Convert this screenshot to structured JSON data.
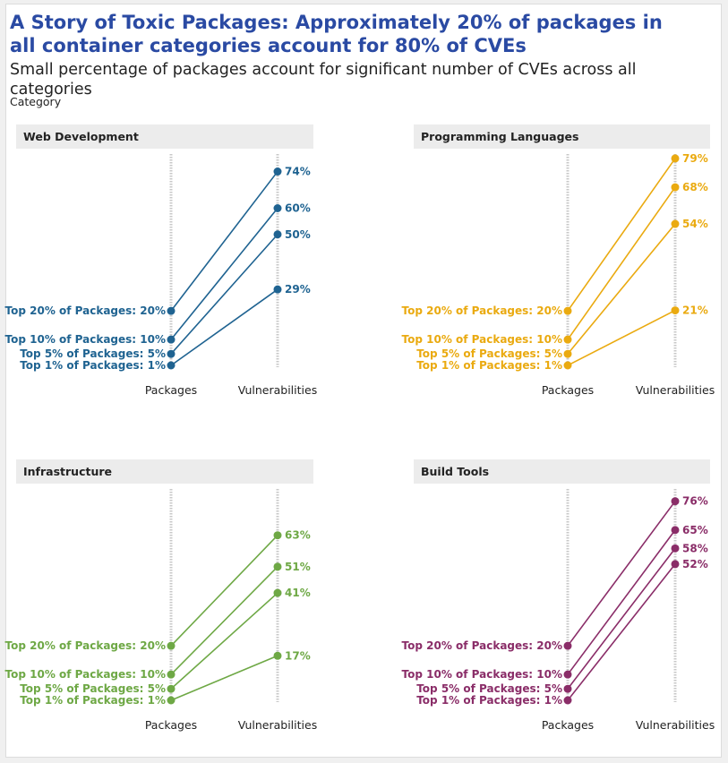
{
  "title": "A Story of Toxic Packages: Approximately 20% of packages in all container categories account for 80% of CVEs",
  "subtitle": "Small percentage of packages account for significant number of CVEs across all categories",
  "facet_label": "Category",
  "chart_data": [
    {
      "type": "slope",
      "title": "Web Development",
      "color": "#1f6391",
      "xlabels": [
        "Packages",
        "Vulnerabilities"
      ],
      "series": [
        {
          "name": "Top 20% of Packages",
          "packages": 20,
          "vulnerabilities": 74
        },
        {
          "name": "Top 10% of Packages",
          "packages": 10,
          "vulnerabilities": 60
        },
        {
          "name": "Top 5% of Packages",
          "packages": 5,
          "vulnerabilities": 50
        },
        {
          "name": "Top 1% of Packages",
          "packages": 1,
          "vulnerabilities": 29
        }
      ]
    },
    {
      "type": "slope",
      "title": "Programming Languages",
      "color": "#eaaa10",
      "xlabels": [
        "Packages",
        "Vulnerabilities"
      ],
      "series": [
        {
          "name": "Top 20% of Packages",
          "packages": 20,
          "vulnerabilities": 79
        },
        {
          "name": "Top 10% of Packages",
          "packages": 10,
          "vulnerabilities": 68
        },
        {
          "name": "Top 5% of Packages",
          "packages": 5,
          "vulnerabilities": 54
        },
        {
          "name": "Top 1% of Packages",
          "packages": 1,
          "vulnerabilities": 21
        }
      ]
    },
    {
      "type": "slope",
      "title": "Infrastructure",
      "color": "#6ea845",
      "xlabels": [
        "Packages",
        "Vulnerabilities"
      ],
      "series": [
        {
          "name": "Top 20% of Packages",
          "packages": 20,
          "vulnerabilities": 63
        },
        {
          "name": "Top 10% of Packages",
          "packages": 10,
          "vulnerabilities": 51
        },
        {
          "name": "Top 5% of Packages",
          "packages": 5,
          "vulnerabilities": 41
        },
        {
          "name": "Top 1% of Packages",
          "packages": 1,
          "vulnerabilities": 17
        }
      ]
    },
    {
      "type": "slope",
      "title": "Build Tools",
      "color": "#8a2d68",
      "xlabels": [
        "Packages",
        "Vulnerabilities"
      ],
      "series": [
        {
          "name": "Top 20% of Packages",
          "packages": 20,
          "vulnerabilities": 76
        },
        {
          "name": "Top 10% of Packages",
          "packages": 10,
          "vulnerabilities": 65
        },
        {
          "name": "Top 5% of Packages",
          "packages": 5,
          "vulnerabilities": 58
        },
        {
          "name": "Top 1% of Packages",
          "packages": 1,
          "vulnerabilities": 52
        }
      ]
    }
  ]
}
